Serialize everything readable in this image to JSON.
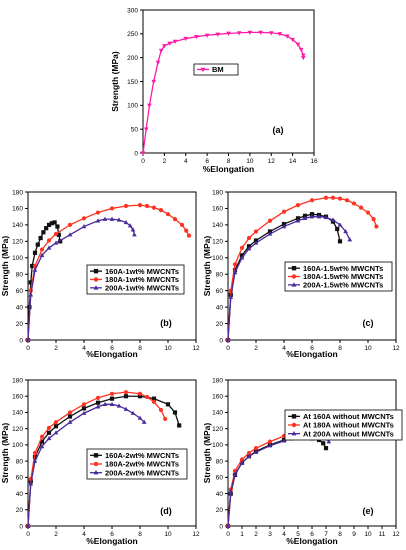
{
  "chart_data": [
    {
      "id": "a",
      "type": "line",
      "panel_label": "(a)",
      "xlabel": "%Elongation",
      "ylabel": "Strength (MPa)",
      "xlim": [
        0,
        16
      ],
      "ylim": [
        0,
        300
      ],
      "xticks": [
        0,
        2,
        4,
        6,
        8,
        10,
        12,
        14,
        16
      ],
      "yticks": [
        0,
        50,
        100,
        150,
        200,
        250,
        300
      ],
      "series": [
        {
          "name": "BM",
          "color": "#ff1aa8",
          "marker": "triangle-down",
          "x": [
            0,
            0.3,
            0.6,
            1.0,
            1.4,
            1.7,
            2.0,
            2.5,
            3,
            4,
            5,
            6,
            7,
            8,
            9,
            10,
            11,
            12,
            12.8,
            13.5,
            14,
            14.5,
            14.8,
            15,
            15
          ],
          "y": [
            0,
            50,
            100,
            150,
            190,
            215,
            225,
            230,
            234,
            240,
            244,
            247,
            249,
            251,
            252,
            253,
            253,
            252,
            250,
            245,
            238,
            228,
            217,
            205,
            200
          ]
        }
      ]
    },
    {
      "id": "b",
      "type": "line",
      "panel_label": "(b)",
      "xlabel": "%Elongation",
      "ylabel": "Strength (MPa)",
      "xlim": [
        0,
        12
      ],
      "ylim": [
        0,
        180
      ],
      "xticks": [
        0,
        2,
        4,
        6,
        8,
        10,
        12
      ],
      "yticks": [
        0,
        20,
        40,
        60,
        80,
        100,
        120,
        140,
        160,
        180
      ],
      "series": [
        {
          "name": "160A-1wt% MWCNTs",
          "color": "#111111",
          "marker": "square",
          "x": [
            0,
            0.1,
            0.2,
            0.3,
            0.5,
            0.7,
            0.9,
            1.1,
            1.3,
            1.5,
            1.7,
            1.9,
            2.1,
            2.2,
            2.3
          ],
          "y": [
            0,
            40,
            70,
            90,
            106,
            116,
            124,
            131,
            136,
            140,
            142,
            143,
            138,
            128,
            120
          ]
        },
        {
          "name": "180A-1wt% MWCNTs",
          "color": "#ff3322",
          "marker": "circle",
          "x": [
            0,
            0.2,
            0.5,
            1,
            1.5,
            2,
            3,
            4,
            5,
            6,
            7,
            8,
            8.5,
            9,
            9.5,
            10,
            10.5,
            11,
            11.3,
            11.5
          ],
          "y": [
            0,
            60,
            90,
            110,
            121,
            129,
            140,
            148,
            155,
            160,
            163,
            164,
            163,
            161,
            158,
            153,
            147,
            140,
            133,
            127
          ]
        },
        {
          "name": "200A-1wt% MWCNTs",
          "color": "#4a2a9a",
          "marker": "triangle-up",
          "x": [
            0,
            0.2,
            0.5,
            1,
            1.5,
            2,
            3,
            4,
            5,
            5.5,
            6,
            6.5,
            7,
            7.3,
            7.5,
            7.6
          ],
          "y": [
            0,
            55,
            85,
            103,
            112,
            118,
            128,
            138,
            145,
            147,
            147,
            146,
            143,
            139,
            134,
            128
          ]
        }
      ]
    },
    {
      "id": "c",
      "type": "line",
      "panel_label": "(c)",
      "xlabel": "%Elongation",
      "ylabel": "Strength (MPa)",
      "xlim": [
        0,
        12
      ],
      "ylim": [
        0,
        180
      ],
      "xticks": [
        0,
        2,
        4,
        6,
        8,
        10,
        12
      ],
      "yticks": [
        0,
        20,
        40,
        60,
        80,
        100,
        120,
        140,
        160,
        180
      ],
      "series": [
        {
          "name": "160A-1.5wt% MWCNTs",
          "color": "#111111",
          "marker": "square",
          "x": [
            0,
            0.2,
            0.5,
            1,
            1.5,
            2,
            3,
            4,
            5,
            5.5,
            6,
            6.5,
            7,
            7.5,
            7.8,
            8.0
          ],
          "y": [
            0,
            55,
            85,
            103,
            114,
            121,
            132,
            141,
            148,
            151,
            153,
            152,
            150,
            144,
            135,
            120
          ]
        },
        {
          "name": "180A-1.5wt% MWCNTs",
          "color": "#ff3322",
          "marker": "circle",
          "x": [
            0,
            0.2,
            0.5,
            1,
            1.5,
            2,
            3,
            4,
            5,
            6,
            7,
            7.5,
            8,
            8.5,
            9,
            9.5,
            10,
            10.4,
            10.6
          ],
          "y": [
            0,
            60,
            92,
            112,
            124,
            132,
            145,
            156,
            164,
            170,
            173,
            173,
            172,
            170,
            166,
            161,
            155,
            147,
            138
          ]
        },
        {
          "name": "200A-1.5wt% MWCNTs",
          "color": "#4a2a9a",
          "marker": "triangle-up",
          "x": [
            0,
            0.2,
            0.5,
            1,
            1.5,
            2,
            3,
            4,
            5,
            5.5,
            6,
            6.5,
            7,
            7.5,
            8,
            8.4,
            8.7
          ],
          "y": [
            0,
            52,
            82,
            100,
            111,
            118,
            129,
            138,
            145,
            148,
            150,
            150,
            149,
            146,
            140,
            132,
            122
          ]
        }
      ]
    },
    {
      "id": "d",
      "type": "line",
      "panel_label": "(d)",
      "xlabel": "%Elongation",
      "ylabel": "Strength (MPa)",
      "xlim": [
        0,
        12
      ],
      "ylim": [
        0,
        180
      ],
      "xticks": [
        0,
        2,
        4,
        6,
        8,
        10,
        12
      ],
      "yticks": [
        0,
        20,
        40,
        60,
        80,
        100,
        120,
        140,
        160,
        180
      ],
      "series": [
        {
          "name": "160A-2wt% MWCNTs",
          "color": "#111111",
          "marker": "square",
          "x": [
            0,
            0.2,
            0.5,
            1,
            1.5,
            2,
            3,
            4,
            5,
            6,
            7,
            8,
            9,
            10,
            10.5,
            10.8
          ],
          "y": [
            0,
            55,
            85,
            104,
            115,
            123,
            135,
            145,
            152,
            157,
            160,
            160,
            157,
            150,
            140,
            124
          ]
        },
        {
          "name": "180A-2wt% MWCNTs",
          "color": "#ff3322",
          "marker": "circle",
          "x": [
            0,
            0.2,
            0.5,
            1,
            1.5,
            2,
            3,
            4,
            5,
            6,
            7,
            8,
            8.5,
            9,
            9.5,
            9.8
          ],
          "y": [
            0,
            58,
            90,
            110,
            121,
            128,
            140,
            150,
            158,
            163,
            165,
            163,
            159,
            153,
            143,
            132
          ]
        },
        {
          "name": "200A-2wt% MWCNTs",
          "color": "#4a2a9a",
          "marker": "triangle-up",
          "x": [
            0,
            0.2,
            0.5,
            1,
            1.5,
            2,
            3,
            4,
            5,
            5.5,
            6,
            6.5,
            7,
            7.5,
            8,
            8.3
          ],
          "y": [
            0,
            52,
            80,
            98,
            108,
            115,
            128,
            139,
            147,
            150,
            150,
            148,
            144,
            139,
            133,
            128
          ]
        }
      ]
    },
    {
      "id": "e",
      "type": "line",
      "panel_label": "(e)",
      "xlabel": "%Elongation",
      "ylabel": "Strength (MPa)",
      "xlim": [
        0,
        12
      ],
      "ylim": [
        0,
        180
      ],
      "xticks": [
        0,
        1,
        2,
        3,
        4,
        5,
        6,
        7,
        8,
        9,
        10,
        11,
        12
      ],
      "yticks": [
        0,
        20,
        40,
        60,
        80,
        100,
        120,
        140,
        160,
        180
      ],
      "series": [
        {
          "name": "At 160A without MWCNTs",
          "color": "#111111",
          "marker": "square",
          "x": [
            0,
            0.2,
            0.5,
            1,
            1.5,
            2,
            3,
            4,
            4.5,
            5,
            5.5,
            6,
            6.5,
            6.8,
            7.0
          ],
          "y": [
            0,
            40,
            63,
            78,
            86,
            92,
            100,
            106,
            108,
            109,
            109,
            108,
            106,
            102,
            96
          ]
        },
        {
          "name": "At 180A without MWCNTs",
          "color": "#ff3322",
          "marker": "circle",
          "x": [
            0,
            0.2,
            0.5,
            1,
            1.5,
            2,
            3,
            4,
            5,
            5.5,
            6,
            6.5,
            7,
            7.3,
            7.5
          ],
          "y": [
            0,
            45,
            68,
            82,
            90,
            96,
            104,
            111,
            116,
            118,
            120,
            121,
            121,
            119,
            115
          ]
        },
        {
          "name": "At 200A without MWCNTs",
          "color": "#4a2a9a",
          "marker": "triangle-up",
          "x": [
            0,
            0.2,
            0.5,
            1,
            1.5,
            2,
            3,
            4,
            4.5,
            5,
            5.5,
            6,
            6.5,
            7,
            7.2
          ],
          "y": [
            0,
            42,
            64,
            78,
            86,
            91,
            99,
            105,
            108,
            110,
            111,
            112,
            112,
            109,
            104
          ]
        }
      ]
    }
  ]
}
